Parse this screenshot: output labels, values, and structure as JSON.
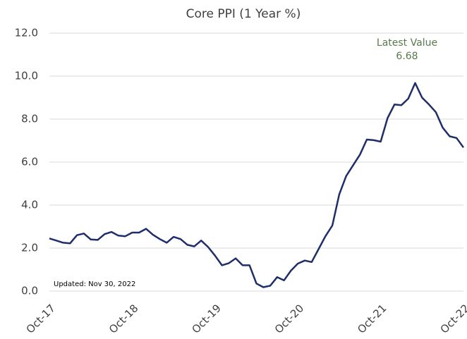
{
  "chart_data": {
    "type": "line",
    "title": "Core PPI (1 Year %)",
    "annotations": [
      "Latest Value",
      "6.68",
      "Updated: Nov 30, 2022"
    ],
    "categories": [
      "Oct-17",
      null,
      null,
      null,
      null,
      null,
      null,
      null,
      null,
      null,
      null,
      null,
      "Oct-18",
      null,
      null,
      null,
      null,
      null,
      null,
      null,
      null,
      null,
      null,
      null,
      "Oct-19",
      null,
      null,
      null,
      null,
      null,
      null,
      null,
      null,
      null,
      null,
      null,
      "Oct-20",
      null,
      null,
      null,
      null,
      null,
      null,
      null,
      null,
      null,
      null,
      null,
      "Oct-21",
      null,
      null,
      null,
      null,
      null,
      null,
      null,
      null,
      null,
      null,
      null,
      "Oct-22"
    ],
    "series": [
      {
        "name": "Core PPI",
        "color": "#1f2d6b",
        "values": [
          2.45,
          2.35,
          2.25,
          2.22,
          2.6,
          2.68,
          2.4,
          2.38,
          2.65,
          2.75,
          2.58,
          2.55,
          2.72,
          2.72,
          2.9,
          2.62,
          2.42,
          2.25,
          2.52,
          2.42,
          2.15,
          2.08,
          2.35,
          2.05,
          1.65,
          1.2,
          1.3,
          1.52,
          1.2,
          1.2,
          0.35,
          0.18,
          0.25,
          0.65,
          0.5,
          0.95,
          1.28,
          1.42,
          1.35,
          1.95,
          2.55,
          3.05,
          4.5,
          5.35,
          5.85,
          6.35,
          7.05,
          7.02,
          6.95,
          8.05,
          8.68,
          8.65,
          8.95,
          9.68,
          9.0,
          8.68,
          8.32,
          7.6,
          7.2,
          7.12,
          6.68
        ]
      }
    ],
    "ylim": [
      0,
      12
    ],
    "yticks": [
      {
        "value": 0,
        "label": "0.0"
      },
      {
        "value": 2,
        "label": "2.0"
      },
      {
        "value": 4,
        "label": "4.0"
      },
      {
        "value": 6,
        "label": "6.0"
      },
      {
        "value": 8,
        "label": "8.0"
      },
      {
        "value": 10,
        "label": "10.0"
      },
      {
        "value": 12,
        "label": "12.0"
      }
    ],
    "grid": true,
    "annotation_color": "#5a7a4a"
  }
}
